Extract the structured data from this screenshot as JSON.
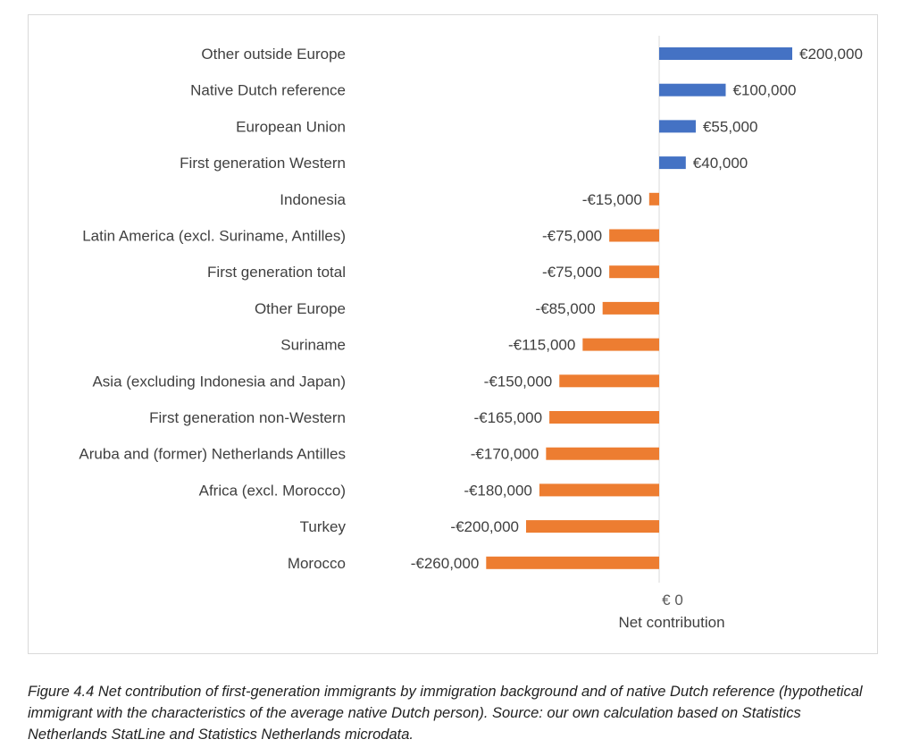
{
  "chart_data": {
    "type": "bar",
    "orientation": "horizontal",
    "categories": [
      "Other outside Europe",
      "Native Dutch reference",
      "European Union",
      "First generation Western",
      "Indonesia",
      "Latin America (excl. Suriname, Antilles)",
      "First generation total",
      "Other Europe",
      "Suriname",
      "Asia (excluding Indonesia and Japan)",
      "First generation non-Western",
      "Aruba and (former) Netherlands Antilles",
      "Africa (excl. Morocco)",
      "Turkey",
      "Morocco"
    ],
    "values": [
      200000,
      100000,
      55000,
      40000,
      -15000,
      -75000,
      -75000,
      -85000,
      -115000,
      -150000,
      -165000,
      -170000,
      -180000,
      -200000,
      -260000
    ],
    "data_labels": [
      "€200,000",
      "€100,000",
      "€55,000",
      "€40,000",
      "-€15,000",
      "-€75,000",
      "-€75,000",
      "-€85,000",
      "-€115,000",
      "-€150,000",
      "-€165,000",
      "-€170,000",
      "-€180,000",
      "-€200,000",
      "-€260,000"
    ],
    "positive_color": "#4472c4",
    "negative_color": "#ed7d31",
    "axis_color": "#d9d9d9",
    "x_tick_label": "€ 0",
    "xlabel": "Net contribution",
    "xlim": [
      -260000,
      200000
    ]
  },
  "caption": "Figure 4.4 Net contribution of first-generation immigrants by immigration background and of native Dutch reference (hypothetical immigrant with the characteristics of the average native Dutch person). Source: our own calculation based on Statistics Netherlands StatLine and Statistics Netherlands microdata."
}
